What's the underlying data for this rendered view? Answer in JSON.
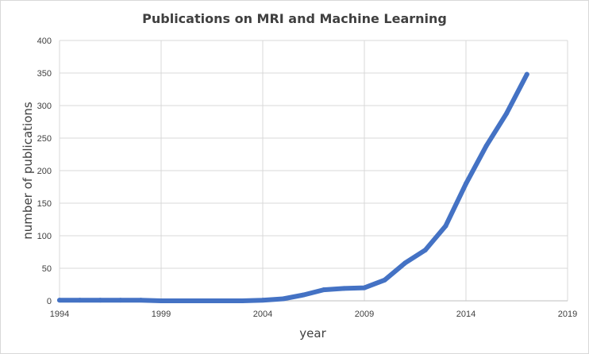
{
  "chart_data": {
    "type": "line",
    "title": "Publications on MRI and Machine Learning",
    "xlabel": "year",
    "ylabel": "number of publications",
    "x_ticks": [
      "1994",
      "1999",
      "2004",
      "2009",
      "2014",
      "2019"
    ],
    "y_ticks": [
      "0",
      "50",
      "100",
      "150",
      "200",
      "250",
      "300",
      "350",
      "400"
    ],
    "xlim": [
      1994,
      2019
    ],
    "ylim": [
      0,
      400
    ],
    "grid": true,
    "legend": "none",
    "series": [
      {
        "color": "#4472c4",
        "x": [
          1994,
          1995,
          1996,
          1997,
          1998,
          1999,
          2000,
          2001,
          2002,
          2003,
          2004,
          2005,
          2006,
          2007,
          2008,
          2009,
          2010,
          2011,
          2012,
          2013,
          2014,
          2015,
          2016,
          2017
        ],
        "values": [
          1,
          1,
          1,
          1,
          1,
          0,
          0,
          0,
          0,
          0,
          1,
          3,
          9,
          17,
          19,
          20,
          32,
          58,
          78,
          115,
          180,
          238,
          288,
          348
        ]
      }
    ]
  }
}
